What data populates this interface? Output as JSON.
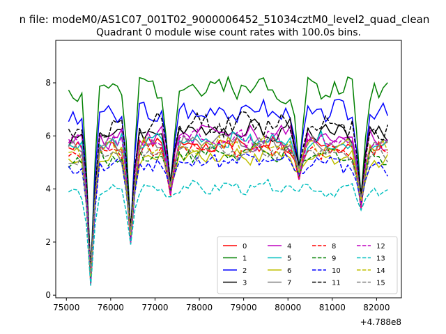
{
  "chart_data": {
    "type": "line",
    "suptitle": "n file: modeM0/AS1C07_001T02_9000006452_51034cztM0_level2_quad_clean",
    "title": "Quadrant 0 module wise count rates with 100.0s bins.",
    "xlabel": "",
    "ylabel": "",
    "x_offset_label": "+4.788e8",
    "x_offset": 478800000,
    "xlim": [
      74760,
      82560
    ],
    "ylim": [
      -0.1,
      9.6
    ],
    "xticks": [
      75000,
      76000,
      77000,
      78000,
      79000,
      80000,
      81000,
      82000
    ],
    "yticks": [
      0,
      2,
      4,
      6,
      8
    ],
    "x_start": 75050,
    "x_step": 100,
    "x_count": 73,
    "legend_position": "lower right",
    "legend_columns": 4,
    "series": [
      {
        "name": "0",
        "color": "#ff0000",
        "dash": "solid",
        "base": 5.4,
        "amp": 0.25,
        "seed": 1
      },
      {
        "name": "1",
        "color": "#008000",
        "dash": "solid",
        "base": 7.6,
        "amp": 0.4,
        "seed": 2
      },
      {
        "name": "2",
        "color": "#0000ff",
        "dash": "solid",
        "base": 6.7,
        "amp": 0.35,
        "seed": 3
      },
      {
        "name": "3",
        "color": "#000000",
        "dash": "solid",
        "base": 6.0,
        "amp": 0.3,
        "seed": 4
      },
      {
        "name": "4",
        "color": "#bf00bf",
        "dash": "solid",
        "base": 5.8,
        "amp": 0.3,
        "seed": 5
      },
      {
        "name": "5",
        "color": "#00bfbf",
        "dash": "solid",
        "base": 5.6,
        "amp": 0.25,
        "seed": 6
      },
      {
        "name": "6",
        "color": "#bfbf00",
        "dash": "solid",
        "base": 5.0,
        "amp": 0.25,
        "seed": 7
      },
      {
        "name": "7",
        "color": "#808080",
        "dash": "solid",
        "base": 5.5,
        "amp": 0.25,
        "seed": 8
      },
      {
        "name": "8",
        "color": "#ff0000",
        "dash": "dashed",
        "base": 5.3,
        "amp": 0.25,
        "seed": 9
      },
      {
        "name": "9",
        "color": "#008000",
        "dash": "dashed",
        "base": 5.1,
        "amp": 0.25,
        "seed": 10
      },
      {
        "name": "10",
        "color": "#0000ff",
        "dash": "dashed",
        "base": 4.8,
        "amp": 0.25,
        "seed": 11
      },
      {
        "name": "11",
        "color": "#000000",
        "dash": "dashed",
        "base": 6.2,
        "amp": 0.35,
        "seed": 12
      },
      {
        "name": "12",
        "color": "#bf00bf",
        "dash": "dashed",
        "base": 5.6,
        "amp": 0.3,
        "seed": 13
      },
      {
        "name": "13",
        "color": "#00bfbf",
        "dash": "dashed",
        "base": 3.8,
        "amp": 0.2,
        "seed": 14
      },
      {
        "name": "14",
        "color": "#bfbf00",
        "dash": "dashed",
        "base": 5.4,
        "amp": 0.25,
        "seed": 15
      },
      {
        "name": "15",
        "color": "#808080",
        "dash": "dashed",
        "base": 5.2,
        "amp": 0.25,
        "seed": 16
      }
    ],
    "dips": [
      {
        "x": 75550,
        "level": 0.35
      },
      {
        "x": 76450,
        "level": 1.9
      },
      {
        "x": 77350,
        "level": 3.7
      },
      {
        "x": 80250,
        "level": 4.3
      },
      {
        "x": 81650,
        "level": 3.2
      }
    ]
  }
}
